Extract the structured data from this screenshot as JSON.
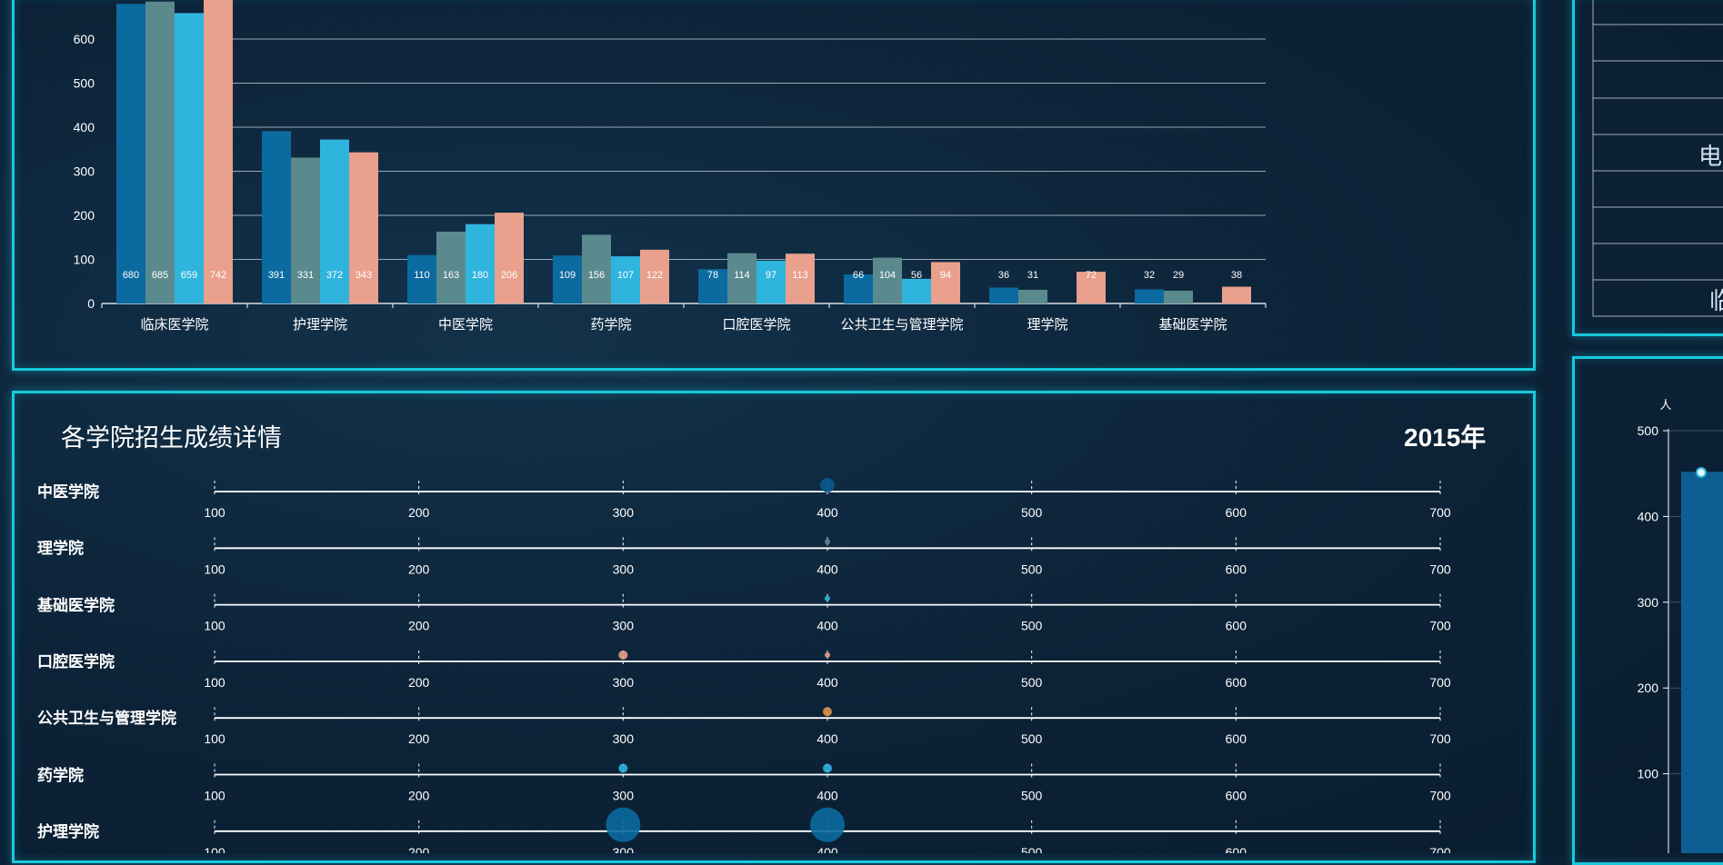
{
  "colors": {
    "series": [
      "#0b6aa0",
      "#5b8a8e",
      "#2fb4de",
      "#e9a08c"
    ],
    "panel_border": "#18c8dc"
  },
  "chart_data": [
    {
      "type": "bar",
      "categories": [
        "临床医学院",
        "护理学院",
        "中医学院",
        "药学院",
        "口腔医学院",
        "公共卫生与管理学院",
        "理学院",
        "基础医学院"
      ],
      "y_ticks": [
        "0",
        "100",
        "200",
        "300",
        "400",
        "500",
        "600"
      ],
      "ylim": [
        0,
        700
      ],
      "grid": true,
      "series": [
        {
          "values": [
            680,
            391,
            110,
            109,
            78,
            66,
            36,
            32
          ]
        },
        {
          "values": [
            685,
            331,
            163,
            156,
            114,
            104,
            31,
            29
          ]
        },
        {
          "values": [
            659,
            372,
            180,
            107,
            97,
            56,
            null,
            null
          ]
        },
        {
          "values": [
            742,
            343,
            206,
            122,
            113,
            94,
            72,
            38
          ]
        }
      ]
    },
    {
      "type": "scatter",
      "title": "各学院招生成绩详情",
      "year": "2015年",
      "x_ticks": [
        "100",
        "200",
        "300",
        "400",
        "500",
        "600",
        "700"
      ],
      "xlim": [
        100,
        700
      ],
      "rows": [
        {
          "label": "中医学院",
          "points": [
            {
              "x": 400,
              "size": "medium",
              "color": "#0b5a8c"
            }
          ]
        },
        {
          "label": "理学院",
          "points": [
            {
              "x": 400,
              "size": "tiny",
              "color": "#5b8a8e"
            }
          ]
        },
        {
          "label": "基础医学院",
          "points": [
            {
              "x": 400,
              "size": "tiny",
              "color": "#2fb4de"
            }
          ]
        },
        {
          "label": "口腔医学院",
          "points": [
            {
              "x": 300,
              "size": "small",
              "color": "#e9a08c"
            },
            {
              "x": 400,
              "size": "tiny",
              "color": "#e9a08c"
            }
          ]
        },
        {
          "label": "公共卫生与管理学院",
          "points": [
            {
              "x": 400,
              "size": "small",
              "color": "#e0944a"
            }
          ]
        },
        {
          "label": "药学院",
          "points": [
            {
              "x": 300,
              "size": "small",
              "color": "#2fb4de"
            },
            {
              "x": 400,
              "size": "small",
              "color": "#2fb4de"
            }
          ]
        },
        {
          "label": "护理学院",
          "points": [
            {
              "x": 300,
              "size": "large",
              "color": "#0b6aa0"
            },
            {
              "x": 400,
              "size": "large",
              "color": "#0b6aa0"
            }
          ]
        }
      ]
    },
    {
      "type": "bar",
      "unit": "人",
      "y_ticks": [
        "100",
        "200",
        "300",
        "400",
        "500"
      ],
      "ylim": [
        0,
        500
      ],
      "values": [
        452
      ]
    }
  ],
  "right_table": {
    "cells": [
      "电",
      "临"
    ]
  }
}
